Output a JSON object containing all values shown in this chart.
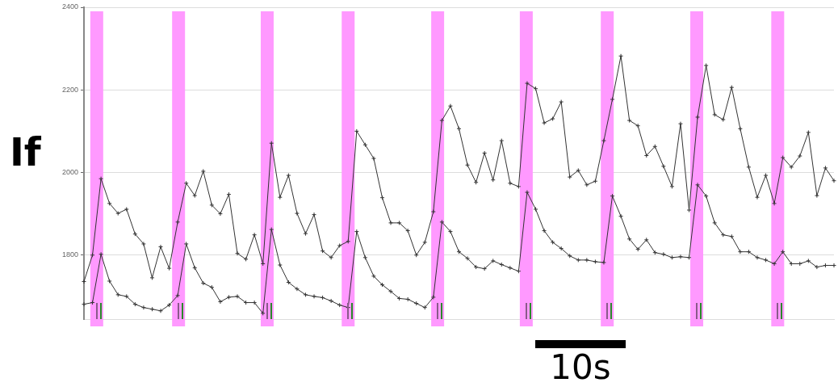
{
  "chart_data": {
    "type": "line",
    "ylabel": "If",
    "categories": [
      null,
      null,
      null,
      null,
      null,
      null,
      null,
      null,
      null,
      null,
      null,
      null,
      null,
      null,
      null,
      null,
      null,
      null,
      null,
      null,
      null,
      null,
      null,
      null,
      null,
      null,
      null,
      null,
      null,
      null,
      null,
      null,
      null,
      null,
      null,
      null,
      null,
      null,
      null,
      null,
      null,
      null,
      null,
      null,
      null,
      null,
      null,
      null,
      null,
      null,
      null,
      null,
      null,
      null,
      null,
      null,
      null,
      null,
      null,
      null,
      null,
      null,
      null,
      null,
      null,
      null,
      null,
      null,
      null,
      null,
      null,
      null,
      null,
      null,
      null,
      null,
      null,
      null,
      null,
      null,
      null,
      null,
      null,
      null,
      null,
      null,
      null,
      null,
      null
    ],
    "series": [
      {
        "color": "#333333",
        "values": [
          1736,
          1800,
          1985,
          1925,
          1901,
          1911,
          1851,
          1827,
          1745,
          1820,
          1768,
          1880,
          1974,
          1944,
          2003,
          1921,
          1900,
          1947,
          1804,
          1790,
          1849,
          1779,
          2071,
          1940,
          1993,
          1901,
          1852,
          1898,
          1810,
          1794,
          1823,
          1833,
          2100,
          2067,
          2034,
          1939,
          1878,
          1878,
          1859,
          1800,
          1831,
          1905,
          2126,
          2161,
          2106,
          2018,
          1976,
          2047,
          1982,
          2077,
          1974,
          1966,
          2216,
          2203,
          2120,
          2130,
          2171,
          1989,
          2005,
          1970,
          1979,
          2077,
          2177,
          2282,
          2126,
          2113,
          2041,
          2063,
          2015,
          1966,
          2118,
          1909,
          2134,
          2259,
          2140,
          2128,
          2206,
          2106,
          2013,
          1940,
          1993,
          1925,
          2036,
          2013,
          2040,
          2097,
          1944,
          2011,
          1980
        ]
      },
      {
        "color": "#333333",
        "values": [
          1681,
          1685,
          1802,
          1737,
          1704,
          1700,
          1681,
          1673,
          1669,
          1665,
          1679,
          1702,
          1827,
          1769,
          1732,
          1722,
          1687,
          1698,
          1700,
          1685,
          1685,
          1659,
          1862,
          1776,
          1734,
          1718,
          1704,
          1700,
          1697,
          1689,
          1679,
          1673,
          1857,
          1794,
          1749,
          1728,
          1712,
          1695,
          1693,
          1683,
          1673,
          1698,
          1880,
          1857,
          1808,
          1792,
          1771,
          1767,
          1786,
          1777,
          1769,
          1761,
          1952,
          1911,
          1859,
          1831,
          1816,
          1798,
          1788,
          1788,
          1784,
          1782,
          1943,
          1894,
          1839,
          1814,
          1837,
          1806,
          1802,
          1794,
          1796,
          1794,
          1970,
          1943,
          1878,
          1849,
          1845,
          1808,
          1808,
          1794,
          1788,
          1779,
          1808,
          1779,
          1779,
          1786,
          1771,
          1775,
          1775
        ]
      }
    ],
    "ylim": [
      1645,
      2400
    ],
    "yticks": [
      1800,
      2000,
      2200,
      2400
    ],
    "tick_labels": "y",
    "grid": "y",
    "legend": false,
    "marker": "cross",
    "line_style": "solid",
    "annotations": [
      "10s"
    ]
  }
}
